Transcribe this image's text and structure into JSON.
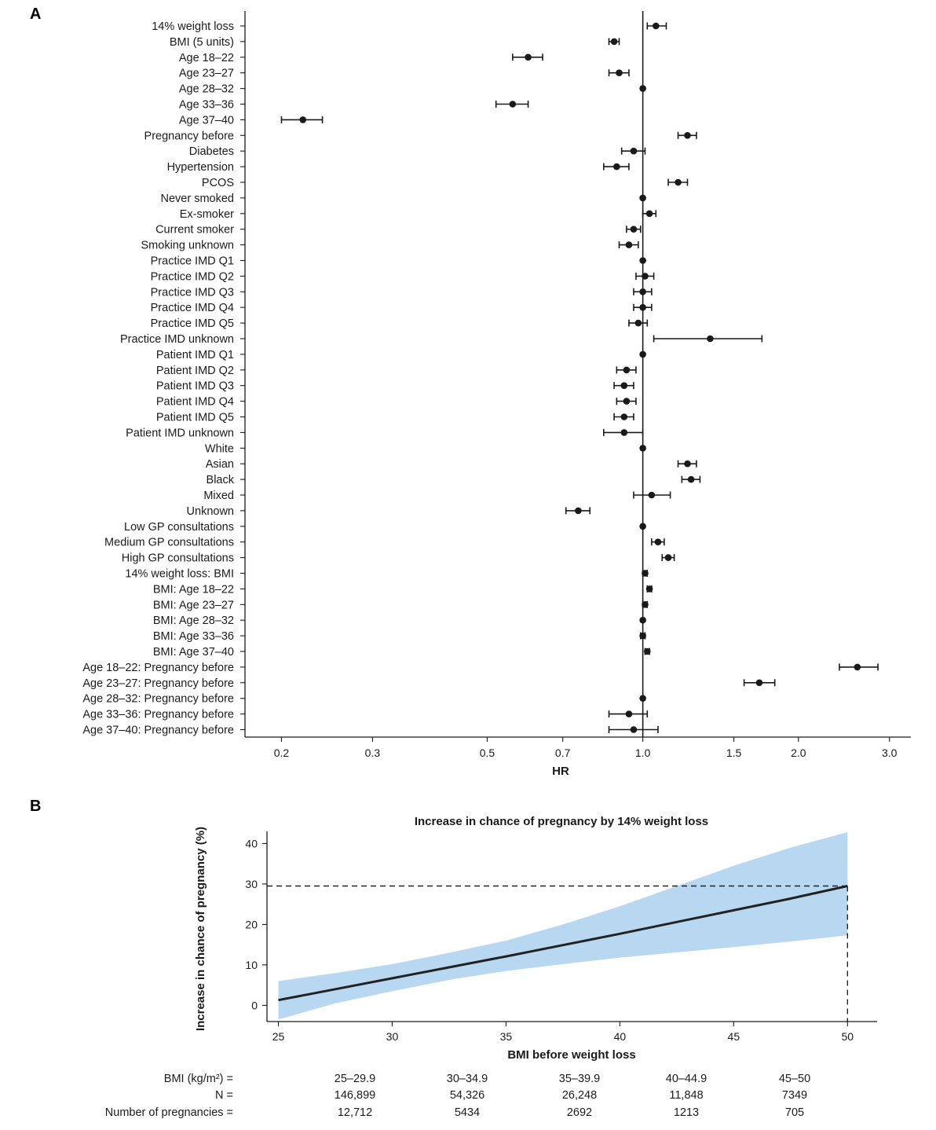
{
  "chart_data": [
    {
      "panel": "A",
      "type": "forest",
      "xlabel": "HR",
      "xscale": "log",
      "xlim": [
        0.17,
        3.3
      ],
      "xticks": [
        0.2,
        0.3,
        0.5,
        0.7,
        1.0,
        1.5,
        2.0,
        3.0
      ],
      "xtick_labels": [
        "0.2",
        "0.3",
        "0.5",
        "0.7",
        "1.0",
        "1.5",
        "2.0",
        "3.0"
      ],
      "reference_line": 1.0,
      "rows": [
        {
          "label": "14% weight loss",
          "hr": 1.06,
          "lo": 1.02,
          "hi": 1.11
        },
        {
          "label": "BMI (5 units)",
          "hr": 0.88,
          "lo": 0.86,
          "hi": 0.9
        },
        {
          "label": "Age 18–22",
          "hr": 0.6,
          "lo": 0.56,
          "hi": 0.64
        },
        {
          "label": "Age 23–27",
          "hr": 0.9,
          "lo": 0.86,
          "hi": 0.94
        },
        {
          "label": "Age 28–32",
          "hr": 1.0,
          "lo": 1.0,
          "hi": 1.0
        },
        {
          "label": "Age 33–36",
          "hr": 0.56,
          "lo": 0.52,
          "hi": 0.6
        },
        {
          "label": "Age 37–40",
          "hr": 0.22,
          "lo": 0.2,
          "hi": 0.24
        },
        {
          "label": "Pregnancy before",
          "hr": 1.22,
          "lo": 1.17,
          "hi": 1.27
        },
        {
          "label": "Diabetes",
          "hr": 0.96,
          "lo": 0.91,
          "hi": 1.01
        },
        {
          "label": "Hypertension",
          "hr": 0.89,
          "lo": 0.84,
          "hi": 0.94
        },
        {
          "label": "PCOS",
          "hr": 1.17,
          "lo": 1.12,
          "hi": 1.22
        },
        {
          "label": "Never smoked",
          "hr": 1.0,
          "lo": 1.0,
          "hi": 1.0
        },
        {
          "label": "Ex-smoker",
          "hr": 1.03,
          "lo": 1.0,
          "hi": 1.06
        },
        {
          "label": "Current smoker",
          "hr": 0.96,
          "lo": 0.93,
          "hi": 0.99
        },
        {
          "label": "Smoking unknown",
          "hr": 0.94,
          "lo": 0.9,
          "hi": 0.98
        },
        {
          "label": "Practice IMD Q1",
          "hr": 1.0,
          "lo": 1.0,
          "hi": 1.0
        },
        {
          "label": "Practice IMD Q2",
          "hr": 1.01,
          "lo": 0.97,
          "hi": 1.05
        },
        {
          "label": "Practice IMD Q3",
          "hr": 1.0,
          "lo": 0.96,
          "hi": 1.04
        },
        {
          "label": "Practice IMD Q4",
          "hr": 1.0,
          "lo": 0.96,
          "hi": 1.04
        },
        {
          "label": "Practice IMD Q5",
          "hr": 0.98,
          "lo": 0.94,
          "hi": 1.02
        },
        {
          "label": "Practice IMD unknown",
          "hr": 1.35,
          "lo": 1.05,
          "hi": 1.7
        },
        {
          "label": "Patient IMD Q1",
          "hr": 1.0,
          "lo": 1.0,
          "hi": 1.0
        },
        {
          "label": "Patient IMD Q2",
          "hr": 0.93,
          "lo": 0.89,
          "hi": 0.97
        },
        {
          "label": "Patient IMD Q3",
          "hr": 0.92,
          "lo": 0.88,
          "hi": 0.96
        },
        {
          "label": "Patient IMD Q4",
          "hr": 0.93,
          "lo": 0.89,
          "hi": 0.97
        },
        {
          "label": "Patient IMD Q5",
          "hr": 0.92,
          "lo": 0.88,
          "hi": 0.96
        },
        {
          "label": "Patient IMD unknown",
          "hr": 0.92,
          "lo": 0.84,
          "hi": 1.0
        },
        {
          "label": "White",
          "hr": 1.0,
          "lo": 1.0,
          "hi": 1.0
        },
        {
          "label": "Asian",
          "hr": 1.22,
          "lo": 1.17,
          "hi": 1.27
        },
        {
          "label": "Black",
          "hr": 1.24,
          "lo": 1.19,
          "hi": 1.29
        },
        {
          "label": "Mixed",
          "hr": 1.04,
          "lo": 0.96,
          "hi": 1.13
        },
        {
          "label": "Unknown",
          "hr": 0.75,
          "lo": 0.71,
          "hi": 0.79
        },
        {
          "label": "Low GP consultations",
          "hr": 1.0,
          "lo": 1.0,
          "hi": 1.0
        },
        {
          "label": "Medium GP consultations",
          "hr": 1.07,
          "lo": 1.04,
          "hi": 1.1
        },
        {
          "label": "High GP consultations",
          "hr": 1.12,
          "lo": 1.09,
          "hi": 1.15
        },
        {
          "label": "14% weight loss: BMI",
          "hr": 1.01,
          "lo": 1.0,
          "hi": 1.02
        },
        {
          "label": "BMI: Age 18–22",
          "hr": 1.03,
          "lo": 1.02,
          "hi": 1.04
        },
        {
          "label": "BMI: Age 23–27",
          "hr": 1.01,
          "lo": 1.0,
          "hi": 1.02
        },
        {
          "label": "BMI: Age 28–32",
          "hr": 1.0,
          "lo": 1.0,
          "hi": 1.0
        },
        {
          "label": "BMI: Age 33–36",
          "hr": 1.0,
          "lo": 0.99,
          "hi": 1.01
        },
        {
          "label": "BMI: Age 37–40",
          "hr": 1.02,
          "lo": 1.01,
          "hi": 1.03
        },
        {
          "label": "Age 18–22: Pregnancy before",
          "hr": 2.6,
          "lo": 2.4,
          "hi": 2.85
        },
        {
          "label": "Age 23–27: Pregnancy before",
          "hr": 1.68,
          "lo": 1.57,
          "hi": 1.8
        },
        {
          "label": "Age 28–32: Pregnancy before",
          "hr": 1.0,
          "lo": 1.0,
          "hi": 1.0
        },
        {
          "label": "Age 33–36: Pregnancy before",
          "hr": 0.94,
          "lo": 0.86,
          "hi": 1.02
        },
        {
          "label": "Age 37–40: Pregnancy before",
          "hr": 0.96,
          "lo": 0.86,
          "hi": 1.07
        }
      ]
    },
    {
      "panel": "B",
      "type": "line",
      "title": "Increase in chance of pregnancy by 14% weight loss",
      "xlabel": "BMI before weight loss",
      "ylabel": "Increase in chance of pregnancy (%)",
      "xlim": [
        24.5,
        51.3
      ],
      "ylim": [
        -4,
        43
      ],
      "xticks": [
        25,
        30,
        35,
        40,
        45,
        50
      ],
      "yticks": [
        0,
        10,
        20,
        30,
        40
      ],
      "x": [
        25,
        27.5,
        30,
        32.5,
        35,
        37.5,
        40,
        42.5,
        45,
        47.5,
        50
      ],
      "y": [
        1.3,
        4.0,
        6.7,
        9.4,
        12.1,
        14.9,
        17.7,
        20.6,
        23.5,
        26.4,
        29.5
      ],
      "ci_lower": [
        -3.5,
        0.5,
        3.5,
        6.3,
        8.5,
        10.2,
        11.8,
        13.1,
        14.4,
        15.8,
        17.3
      ],
      "ci_upper": [
        6.0,
        8.0,
        10.2,
        13.0,
        16.0,
        20.0,
        24.5,
        29.5,
        34.5,
        39.0,
        42.8
      ],
      "reference_y": 29.5,
      "reference_x": 50,
      "band_color": "#b8d8f2",
      "line_color": "#222222"
    }
  ],
  "panel_labels": {
    "a": "A",
    "b": "B"
  },
  "table": {
    "row_labels": [
      "BMI (kg/m²) =",
      "N =",
      "Number of pregnancies ="
    ],
    "columns": [
      {
        "bmi": "25–29.9",
        "n": "146,899",
        "preg": "12,712"
      },
      {
        "bmi": "30–34.9",
        "n": "54,326",
        "preg": "5434"
      },
      {
        "bmi": "35–39.9",
        "n": "26,248",
        "preg": "2692"
      },
      {
        "bmi": "40–44.9",
        "n": "11,848",
        "preg": "1213"
      },
      {
        "bmi": "45–50",
        "n": "7349",
        "preg": "705"
      }
    ]
  }
}
